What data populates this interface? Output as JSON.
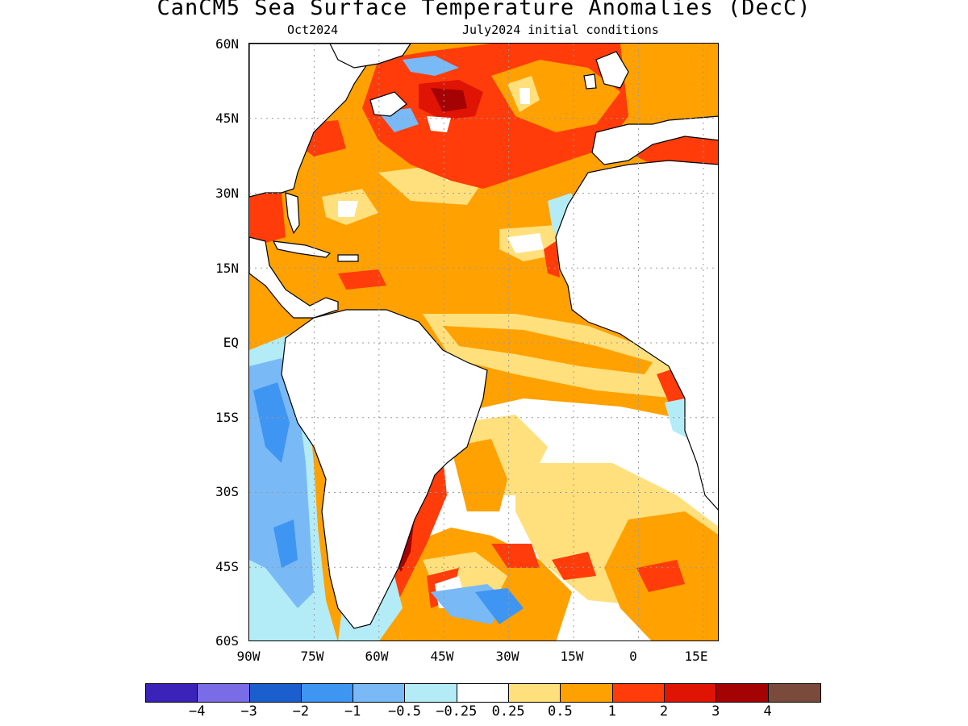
{
  "title": "CanCM5 Sea Surface Temperature Anomalies (DecC)",
  "subtitle_left": "Oct2024",
  "subtitle_right": "July2024 initial conditions",
  "lat_labels": [
    "60N",
    "45N",
    "30N",
    "15N",
    "EQ",
    "15S",
    "30S",
    "45S",
    "60S"
  ],
  "lon_labels": [
    "90W",
    "75W",
    "60W",
    "45W",
    "30W",
    "15W",
    "0",
    "15E"
  ],
  "colorbar": {
    "colors": [
      "#3b22b8",
      "#7a6ce6",
      "#1b5fce",
      "#3f95f2",
      "#79b9f6",
      "#b3ecf6",
      "#ffffff",
      "#ffe07c",
      "#ffa100",
      "#ff3c0a",
      "#e01404",
      "#a50204",
      "#7a4a3a"
    ],
    "labels": [
      "−4",
      "−3",
      "−2",
      "−1",
      "−0.5",
      "−0.25",
      "0.25",
      "0.5",
      "1",
      "2",
      "3",
      "4"
    ]
  },
  "map": {
    "ocean_color": "#ffa100",
    "land_color": "#ffffff",
    "coast_color": "#000000",
    "grid_color": "#9a9a9a"
  }
}
